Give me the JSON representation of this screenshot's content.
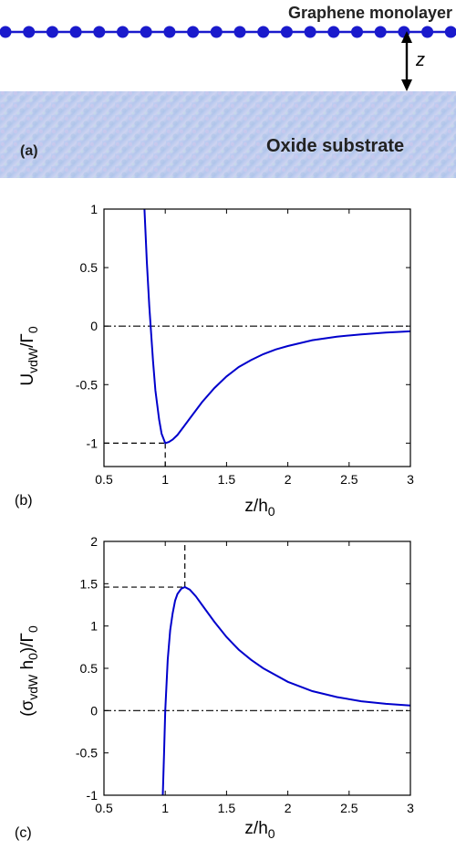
{
  "panel_a": {
    "top_label": "Graphene monolayer",
    "substrate_label": "Oxide substrate",
    "distance_label": "z",
    "panel_tag": "(a)",
    "colors": {
      "graphene": "#1a1acc",
      "arrow": "#000000",
      "substrate": "#b9c9ef"
    }
  },
  "chart_data": [
    {
      "type": "line",
      "panel_tag": "(b)",
      "xlabel": {
        "main": "z/h",
        "sub": "0"
      },
      "ylabel": {
        "main": "U",
        "sub1": "vdW",
        "mid": "/Γ",
        "sub2": "0"
      },
      "xlim": [
        0.5,
        3
      ],
      "ylim": [
        -1.2,
        1
      ],
      "xticks": [
        "0.5",
        "1",
        "1.5",
        "2",
        "2.5",
        "3"
      ],
      "yticks": [
        "-1",
        "-0.5",
        "0",
        "0.5",
        "1"
      ],
      "series": [
        {
          "color": "#0000cc",
          "x": [
            0.83,
            0.85,
            0.87,
            0.9,
            0.92,
            0.95,
            0.97,
            1.0,
            1.03,
            1.06,
            1.1,
            1.15,
            1.2,
            1.3,
            1.4,
            1.5,
            1.6,
            1.7,
            1.8,
            1.9,
            2.0,
            2.2,
            2.4,
            2.6,
            2.8,
            3.0
          ],
          "y": [
            1.0,
            0.55,
            0.17,
            -0.3,
            -0.55,
            -0.8,
            -0.92,
            -1.0,
            -0.99,
            -0.97,
            -0.93,
            -0.86,
            -0.79,
            -0.65,
            -0.53,
            -0.43,
            -0.35,
            -0.29,
            -0.24,
            -0.2,
            -0.17,
            -0.12,
            -0.09,
            -0.07,
            -0.055,
            -0.045
          ]
        }
      ],
      "reference_lines": [
        {
          "kind": "horizontal",
          "style": "dash-dot",
          "y": 0
        },
        {
          "kind": "horizontal-to-point",
          "style": "dashed",
          "y": -1,
          "x_end": 1
        },
        {
          "kind": "vertical-from-point",
          "style": "dashed",
          "x": 1,
          "y_start": -1
        }
      ]
    },
    {
      "type": "line",
      "panel_tag": "(c)",
      "xlabel": {
        "main": "z/h",
        "sub": "0"
      },
      "ylabel": {
        "main": "(σ",
        "sub1": "vdW",
        "mid": " h",
        "sub2": "0",
        "tail": ")/Γ",
        "sub3": "0"
      },
      "xlim": [
        0.5,
        3
      ],
      "ylim": [
        -1,
        2
      ],
      "xticks": [
        "0.5",
        "1",
        "1.5",
        "2",
        "2.5",
        "3"
      ],
      "yticks": [
        "-1",
        "-0.5",
        "0",
        "0.5",
        "1",
        "1.5",
        "2"
      ],
      "series": [
        {
          "color": "#0000cc",
          "x": [
            0.98,
            0.99,
            1.0,
            1.02,
            1.04,
            1.06,
            1.08,
            1.1,
            1.13,
            1.16,
            1.2,
            1.25,
            1.3,
            1.4,
            1.5,
            1.6,
            1.7,
            1.8,
            2.0,
            2.2,
            2.4,
            2.6,
            2.8,
            3.0
          ],
          "y": [
            -1.0,
            -0.5,
            0.0,
            0.6,
            0.95,
            1.15,
            1.3,
            1.38,
            1.44,
            1.46,
            1.43,
            1.35,
            1.25,
            1.05,
            0.87,
            0.72,
            0.6,
            0.5,
            0.34,
            0.23,
            0.16,
            0.11,
            0.08,
            0.06
          ]
        }
      ],
      "reference_lines": [
        {
          "kind": "horizontal",
          "style": "dash-dot",
          "y": 0
        },
        {
          "kind": "horizontal-to-point",
          "style": "dashed",
          "y": 1.46,
          "x_end": 1.16
        },
        {
          "kind": "vertical-from-point",
          "style": "dashed",
          "x": 1.16,
          "y_start": 1.46
        }
      ]
    }
  ]
}
